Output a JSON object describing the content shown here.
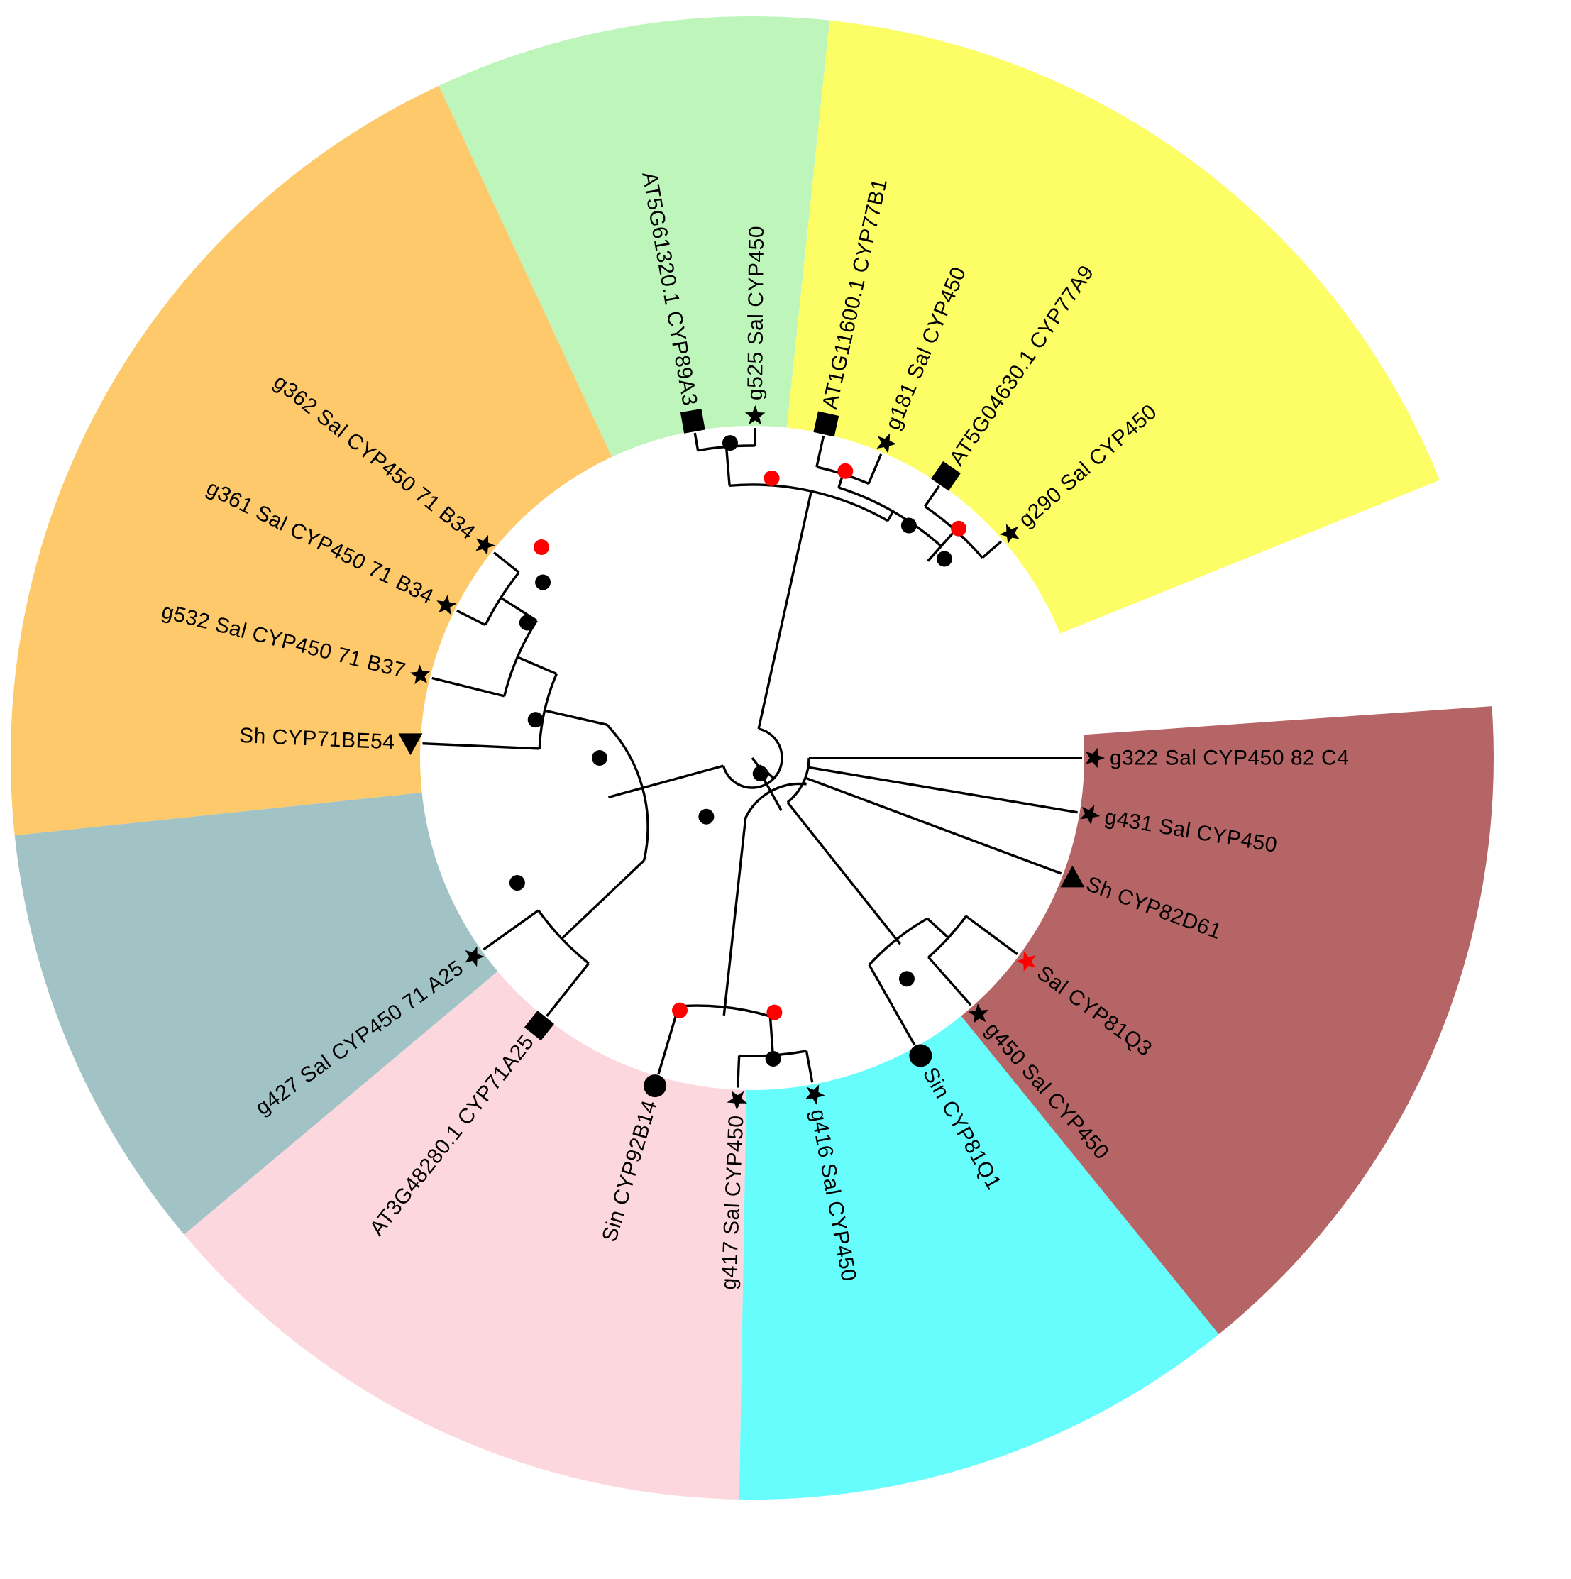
{
  "colors": {
    "clade_green": "#bdf5bb",
    "clade_yellow": "#fdfd66",
    "clade_orange": "#fdc96b",
    "clade_grey": "#a1c3c6",
    "clade_pink": "#fdd7de",
    "clade_cyan": "#67fdfd",
    "clade_red": "#b56565",
    "node_black": "#000000",
    "node_red": "#ff0000",
    "branch": "#000000"
  },
  "clades": [
    {
      "name": "green",
      "color_key": "clade_green"
    },
    {
      "name": "yellow",
      "color_key": "clade_yellow"
    },
    {
      "name": "orange",
      "color_key": "clade_orange"
    },
    {
      "name": "grey",
      "color_key": "clade_grey"
    },
    {
      "name": "pink",
      "color_key": "clade_pink"
    },
    {
      "name": "cyan",
      "color_key": "clade_cyan"
    },
    {
      "name": "red",
      "color_key": "clade_red"
    }
  ],
  "leaves": [
    {
      "label": "AT5G61320.1 CYP89A3",
      "marker": "square",
      "marker_color": "black",
      "clade": "green"
    },
    {
      "label": "g525 Sal CYP450",
      "marker": "star",
      "marker_color": "black",
      "clade": "green"
    },
    {
      "label": "AT1G11600.1 CYP77B1",
      "marker": "square",
      "marker_color": "black",
      "clade": "yellow"
    },
    {
      "label": "g181 Sal CYP450",
      "marker": "star",
      "marker_color": "black",
      "clade": "yellow"
    },
    {
      "label": "AT5G04630.1 CYP77A9",
      "marker": "square",
      "marker_color": "black",
      "clade": "yellow"
    },
    {
      "label": "g290 Sal CYP450",
      "marker": "star",
      "marker_color": "black",
      "clade": "yellow"
    },
    {
      "label": "g322 Sal CYP450 82 C4",
      "marker": "star",
      "marker_color": "black",
      "clade": "red"
    },
    {
      "label": "g431 Sal CYP450",
      "marker": "star",
      "marker_color": "black",
      "clade": "red"
    },
    {
      "label": "Sh CYP82D61",
      "marker": "triangle-up",
      "marker_color": "black",
      "clade": "red"
    },
    {
      "label": "Sal CYP81Q3",
      "marker": "star",
      "marker_color": "red",
      "clade": "cyan"
    },
    {
      "label": "g450 Sal CYP450",
      "marker": "star",
      "marker_color": "black",
      "clade": "cyan"
    },
    {
      "label": "Sin CYP81Q1",
      "marker": "circle",
      "marker_color": "black",
      "clade": "cyan"
    },
    {
      "label": "g416 Sal CYP450",
      "marker": "star",
      "marker_color": "black",
      "clade": "pink"
    },
    {
      "label": "g417 Sal CYP450",
      "marker": "star",
      "marker_color": "black",
      "clade": "pink"
    },
    {
      "label": "Sin CYP92B14",
      "marker": "circle",
      "marker_color": "black",
      "clade": "pink"
    },
    {
      "label": "AT3G48280.1 CYP71A25",
      "marker": "square",
      "marker_color": "black",
      "clade": "grey"
    },
    {
      "label": "g427 Sal CYP450 71 A25",
      "marker": "star",
      "marker_color": "black",
      "clade": "grey"
    },
    {
      "label": "Sh CYP71BE54",
      "marker": "triangle-down",
      "marker_color": "black",
      "clade": "orange"
    },
    {
      "label": "g532 Sal CYP450 71 B37",
      "marker": "star",
      "marker_color": "black",
      "clade": "orange"
    },
    {
      "label": "g361 Sal CYP450 71 B34",
      "marker": "star",
      "marker_color": "black",
      "clade": "orange"
    },
    {
      "label": "g362 Sal CYP450 71 B34",
      "marker": "star",
      "marker_color": "black",
      "clade": "orange"
    }
  ],
  "node_support": [
    {
      "node": "g525+AT5G61320.1",
      "dot": "black"
    },
    {
      "node": "green+yellow",
      "dot": "red"
    },
    {
      "node": "AT1G11600.1+g181",
      "dot": "red"
    },
    {
      "node": "AT5G04630.1+g290",
      "dot": "red"
    },
    {
      "node": "yellow",
      "dot": "black"
    },
    {
      "node": "upper_group",
      "dot": "black"
    },
    {
      "node": "g361+g362",
      "dot": "red"
    },
    {
      "node": "g532+(g361,g362)",
      "dot": "black"
    },
    {
      "node": "orange",
      "dot": "black"
    },
    {
      "node": "grey",
      "dot": "black"
    },
    {
      "node": "orange+grey",
      "dot": "black"
    },
    {
      "node": "left_group",
      "dot": "black"
    },
    {
      "node": "g416+g417",
      "dot": "black"
    },
    {
      "node": "pink",
      "dot": "red"
    },
    {
      "node": "pink+cyan_red",
      "dot": "black"
    },
    {
      "node": "cyan_red",
      "dot": "black"
    },
    {
      "node": "Sal CYP81Q3+g450",
      "dot": "black"
    },
    {
      "node": "cyan",
      "dot": "red"
    }
  ]
}
